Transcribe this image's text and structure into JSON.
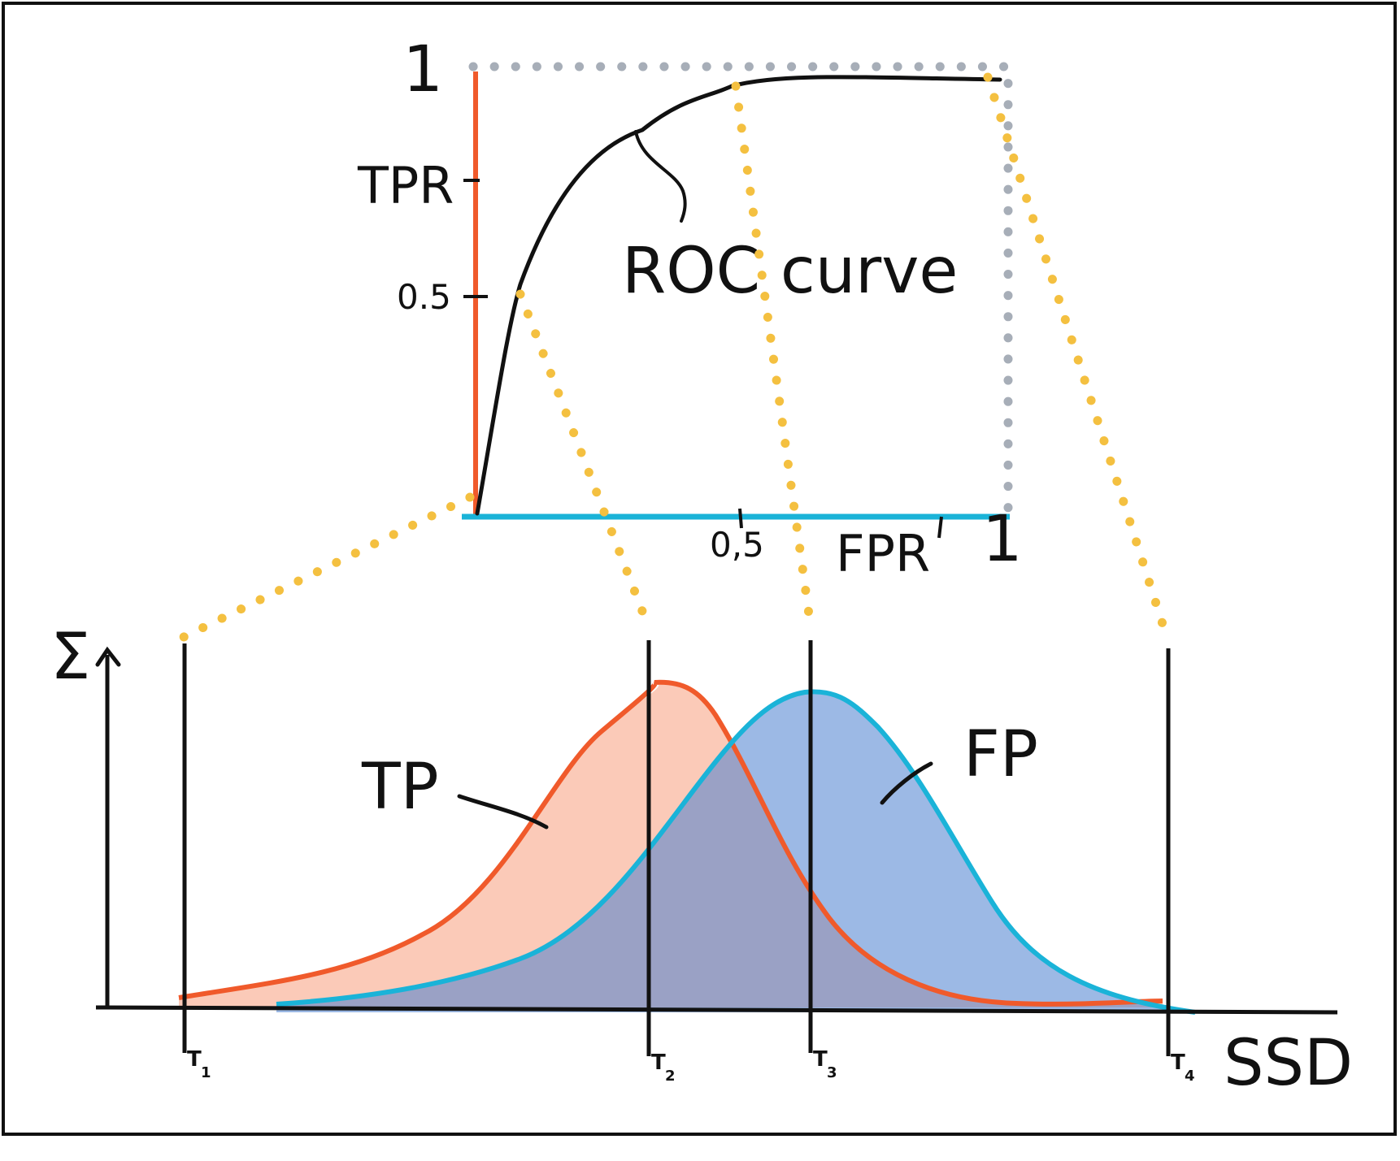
{
  "roc": {
    "y_label": "TPR",
    "x_label": "FPR",
    "y_ticks": [
      "1",
      "0.5"
    ],
    "x_ticks": [
      "0,5",
      "1"
    ],
    "curve_label": "ROC curve"
  },
  "distributions": {
    "y_label": "Σ",
    "x_label": "SSD",
    "tp_label": "TP",
    "fp_label": "FP",
    "thresholds": [
      "T1",
      "T2",
      "T3",
      "T4"
    ],
    "threshold_sub": [
      "1",
      "2",
      "3",
      "4"
    ]
  },
  "colors": {
    "tp": "#f05a2b",
    "fp": "#1ab3d8",
    "fp_fill": "#4a7fd0",
    "dotted_links": "#f4c040",
    "frame_dotted": "#a7aeb8",
    "ink": "#111111"
  }
}
